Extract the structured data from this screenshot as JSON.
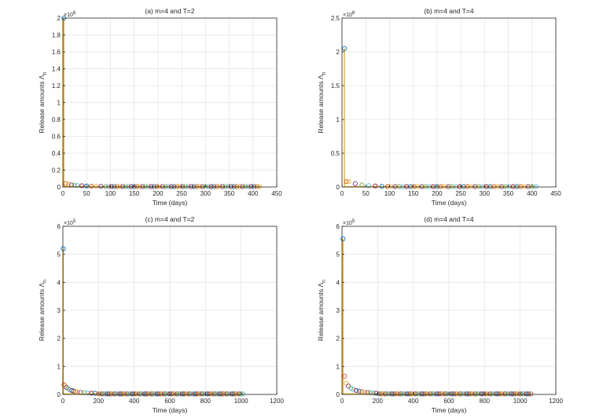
{
  "chart_data": [
    {
      "type": "scatter",
      "title": "(a) m=4 and T=2",
      "xlabel": "Time (days)",
      "ylabel": "Release amounts \\u039b_n",
      "ylabel_text": "Release amounts Λ",
      "ylabel_sub": "n",
      "exponent_label": "×10",
      "exponent": "6",
      "xlim": [
        0,
        450
      ],
      "ylim": [
        0,
        2
      ],
      "xticks": [
        0,
        50,
        100,
        150,
        200,
        250,
        300,
        350,
        400,
        450
      ],
      "yticks": [
        0,
        0.2,
        0.4,
        0.6,
        0.8,
        1,
        1.2,
        1.4,
        1.6,
        1.8,
        2
      ],
      "ytick_labels": [
        "0",
        "0.2",
        "0.4",
        "0.6",
        "0.8",
        "1",
        "1.2",
        "1.4",
        "1.6",
        "1.8",
        "2"
      ],
      "grid": true,
      "spike": {
        "x": 2,
        "y": 2.0
      },
      "head": [
        [
          2,
          2.0
        ],
        [
          6,
          0.04
        ],
        [
          12,
          0.035
        ],
        [
          18,
          0.025
        ],
        [
          24,
          0.022
        ],
        [
          30,
          0.018
        ],
        [
          40,
          0.015
        ],
        [
          50,
          0.012
        ],
        [
          60,
          0.01
        ],
        [
          70,
          0.009
        ],
        [
          80,
          0.008
        ]
      ],
      "tail": {
        "x_start": 90,
        "x_end": 416,
        "step": 6,
        "y": 0.005
      }
    },
    {
      "type": "scatter",
      "title": "(b) m=4 and T=4",
      "xlabel": "Time (days)",
      "ylabel": "Release amounts \\u039b_n",
      "ylabel_text": "Release amounts Λ",
      "ylabel_sub": "n",
      "exponent_label": "×10",
      "exponent": "6",
      "xlim": [
        0,
        450
      ],
      "ylim": [
        0,
        2.5
      ],
      "xticks": [
        0,
        50,
        100,
        150,
        200,
        250,
        300,
        350,
        400,
        450
      ],
      "yticks": [
        0,
        0.5,
        1,
        1.5,
        2,
        2.5
      ],
      "ytick_labels": [
        "0",
        "0.5",
        "1",
        "1.5",
        "2",
        "2.5"
      ],
      "grid": true,
      "spike": {
        "x": 5,
        "y": 2.05
      },
      "head": [
        [
          5,
          2.05
        ],
        [
          9,
          0.08
        ],
        [
          14,
          0.08
        ],
        [
          28,
          0.05
        ],
        [
          42,
          0.03
        ],
        [
          56,
          0.02
        ],
        [
          70,
          0.015
        ],
        [
          84,
          0.01
        ]
      ],
      "tail": {
        "x_start": 96,
        "x_end": 408,
        "step": 8,
        "y": 0.006
      }
    },
    {
      "type": "scatter",
      "title": "(c) m=4 and T=2",
      "xlabel": "Time (days)",
      "ylabel": "Release amounts \\u039b_n",
      "ylabel_text": "Release amounts Λ",
      "ylabel_sub": "n",
      "exponent_label": "×10",
      "exponent": "5",
      "xlim": [
        0,
        1200
      ],
      "ylim": [
        0,
        6
      ],
      "xticks": [
        0,
        200,
        400,
        600,
        800,
        1000,
        1200
      ],
      "yticks": [
        0,
        1,
        2,
        3,
        4,
        5,
        6
      ],
      "ytick_labels": [
        "0",
        "1",
        "2",
        "3",
        "4",
        "5",
        "6"
      ],
      "grid": true,
      "spike": {
        "x": 2,
        "y": 5.2
      },
      "head": [
        [
          2,
          5.2
        ],
        [
          6,
          0.35
        ],
        [
          12,
          0.3
        ],
        [
          20,
          0.25
        ],
        [
          30,
          0.2
        ],
        [
          40,
          0.16
        ],
        [
          50,
          0.14
        ],
        [
          60,
          0.12
        ],
        [
          70,
          0.1
        ],
        [
          80,
          0.09
        ],
        [
          100,
          0.07
        ],
        [
          120,
          0.06
        ],
        [
          140,
          0.05
        ],
        [
          160,
          0.045
        ],
        [
          180,
          0.04
        ]
      ],
      "tail": {
        "x_start": 200,
        "x_end": 1010,
        "step": 10,
        "y": 0.02
      }
    },
    {
      "type": "scatter",
      "title": "(d) m=4 and T=4",
      "xlabel": "Time (days)",
      "ylabel": "Release amounts \\u039b_n",
      "ylabel_text": "Release amounts Λ",
      "ylabel_sub": "n",
      "exponent_label": "×10",
      "exponent": "5",
      "xlim": [
        0,
        1200
      ],
      "ylim": [
        0,
        6
      ],
      "xticks": [
        0,
        200,
        400,
        600,
        800,
        1000,
        1200
      ],
      "yticks": [
        0,
        1,
        2,
        3,
        4,
        5,
        6
      ],
      "ytick_labels": [
        "0",
        "1",
        "2",
        "3",
        "4",
        "5",
        "6"
      ],
      "grid": true,
      "spike": {
        "x": 6,
        "y": 5.55
      },
      "head": [
        [
          6,
          5.55
        ],
        [
          14,
          0.65
        ],
        [
          24,
          0.4
        ],
        [
          36,
          0.3
        ],
        [
          50,
          0.22
        ],
        [
          64,
          0.18
        ],
        [
          80,
          0.14
        ],
        [
          96,
          0.12
        ],
        [
          112,
          0.1
        ],
        [
          128,
          0.08
        ],
        [
          144,
          0.07
        ],
        [
          160,
          0.06
        ],
        [
          176,
          0.05
        ],
        [
          192,
          0.045
        ]
      ],
      "tail": {
        "x_start": 208,
        "x_end": 1060,
        "step": 12,
        "y": 0.02
      }
    }
  ],
  "colors": {
    "series": [
      "#0072BD",
      "#D95319",
      "#EDB120",
      "#7E2F8E",
      "#77AC30",
      "#4DBEEE",
      "#A2142F"
    ],
    "spike_line": "#EDB120",
    "grid": "#e5e5e5",
    "axes": "#262626"
  }
}
